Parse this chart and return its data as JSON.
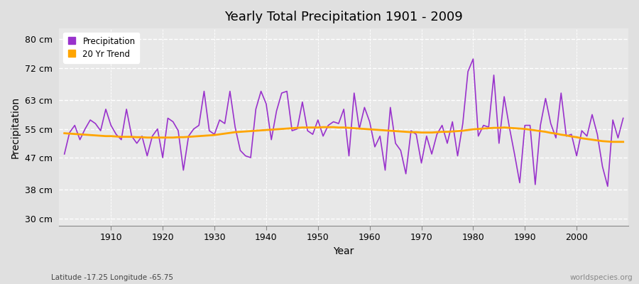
{
  "title": "Yearly Total Precipitation 1901 - 2009",
  "xlabel": "Year",
  "ylabel": "Precipitation",
  "subtitle": "Latitude -17.25 Longitude -65.75",
  "watermark": "worldspecies.org",
  "years": [
    1901,
    1902,
    1903,
    1904,
    1905,
    1906,
    1907,
    1908,
    1909,
    1910,
    1911,
    1912,
    1913,
    1914,
    1915,
    1916,
    1917,
    1918,
    1919,
    1920,
    1921,
    1922,
    1923,
    1924,
    1925,
    1926,
    1927,
    1928,
    1929,
    1930,
    1931,
    1932,
    1933,
    1934,
    1935,
    1936,
    1937,
    1938,
    1939,
    1940,
    1941,
    1942,
    1943,
    1944,
    1945,
    1946,
    1947,
    1948,
    1949,
    1950,
    1951,
    1952,
    1953,
    1954,
    1955,
    1956,
    1957,
    1958,
    1959,
    1960,
    1961,
    1962,
    1963,
    1964,
    1965,
    1966,
    1967,
    1968,
    1969,
    1970,
    1971,
    1972,
    1973,
    1974,
    1975,
    1976,
    1977,
    1978,
    1979,
    1980,
    1981,
    1982,
    1983,
    1984,
    1985,
    1986,
    1987,
    1988,
    1989,
    1990,
    1991,
    1992,
    1993,
    1994,
    1995,
    1996,
    1997,
    1998,
    1999,
    2000,
    2001,
    2002,
    2003,
    2004,
    2005,
    2006,
    2007,
    2008,
    2009
  ],
  "precip": [
    48.0,
    54.0,
    56.0,
    52.0,
    55.0,
    57.5,
    56.5,
    54.5,
    60.5,
    56.0,
    53.5,
    52.0,
    60.5,
    53.0,
    51.0,
    53.0,
    47.5,
    53.0,
    55.0,
    47.0,
    58.0,
    57.0,
    54.5,
    43.5,
    53.0,
    55.0,
    56.0,
    65.5,
    54.5,
    53.5,
    57.5,
    56.5,
    65.5,
    55.5,
    49.0,
    47.5,
    47.0,
    60.5,
    65.5,
    62.0,
    52.0,
    60.0,
    65.0,
    65.5,
    54.5,
    55.0,
    62.5,
    54.5,
    53.5,
    57.5,
    53.0,
    56.0,
    57.0,
    56.5,
    60.5,
    47.5,
    65.0,
    55.0,
    61.0,
    57.0,
    50.0,
    53.0,
    43.5,
    61.0,
    51.0,
    49.0,
    42.5,
    54.5,
    53.5,
    45.5,
    53.0,
    48.0,
    53.5,
    56.0,
    51.0,
    57.0,
    47.5,
    56.5,
    71.0,
    74.5,
    53.0,
    56.0,
    55.5,
    70.0,
    51.0,
    64.0,
    55.5,
    48.0,
    40.0,
    56.0,
    56.0,
    39.5,
    56.0,
    63.5,
    56.5,
    52.5,
    65.0,
    53.0,
    53.5,
    47.5,
    54.5,
    53.0,
    59.0,
    53.5,
    44.5,
    39.0,
    57.5,
    52.5,
    58.0
  ],
  "trend": [
    53.8,
    53.7,
    53.6,
    53.5,
    53.4,
    53.3,
    53.2,
    53.1,
    53.0,
    53.0,
    52.9,
    52.8,
    52.8,
    52.8,
    52.7,
    52.7,
    52.6,
    52.6,
    52.6,
    52.6,
    52.6,
    52.6,
    52.7,
    52.7,
    52.8,
    52.9,
    53.0,
    53.1,
    53.2,
    53.3,
    53.5,
    53.7,
    53.9,
    54.1,
    54.2,
    54.3,
    54.4,
    54.5,
    54.6,
    54.7,
    54.8,
    54.9,
    55.0,
    55.1,
    55.2,
    55.3,
    55.4,
    55.4,
    55.4,
    55.4,
    55.5,
    55.5,
    55.5,
    55.4,
    55.4,
    55.3,
    55.2,
    55.1,
    55.0,
    54.9,
    54.8,
    54.7,
    54.6,
    54.5,
    54.4,
    54.3,
    54.2,
    54.1,
    54.1,
    54.0,
    54.0,
    54.0,
    54.1,
    54.2,
    54.2,
    54.3,
    54.4,
    54.5,
    54.7,
    54.9,
    55.0,
    55.1,
    55.2,
    55.3,
    55.3,
    55.4,
    55.3,
    55.2,
    55.1,
    55.0,
    54.8,
    54.6,
    54.4,
    54.2,
    53.9,
    53.7,
    53.4,
    53.2,
    52.9,
    52.7,
    52.4,
    52.2,
    52.0,
    51.8,
    51.6,
    51.5,
    51.4,
    51.4,
    51.4
  ],
  "precip_color": "#9932CC",
  "trend_color": "#FFA500",
  "bg_color": "#E0E0E0",
  "plot_bg_color": "#E8E8E8",
  "grid_color": "#FFFFFF",
  "yticks": [
    30,
    38,
    47,
    55,
    63,
    72,
    80
  ],
  "ytick_labels": [
    "30 cm",
    "38 cm",
    "47 cm",
    "55 cm",
    "63 cm",
    "72 cm",
    "80 cm"
  ],
  "ylim": [
    28,
    83
  ],
  "xlim": [
    1900,
    2010
  ]
}
